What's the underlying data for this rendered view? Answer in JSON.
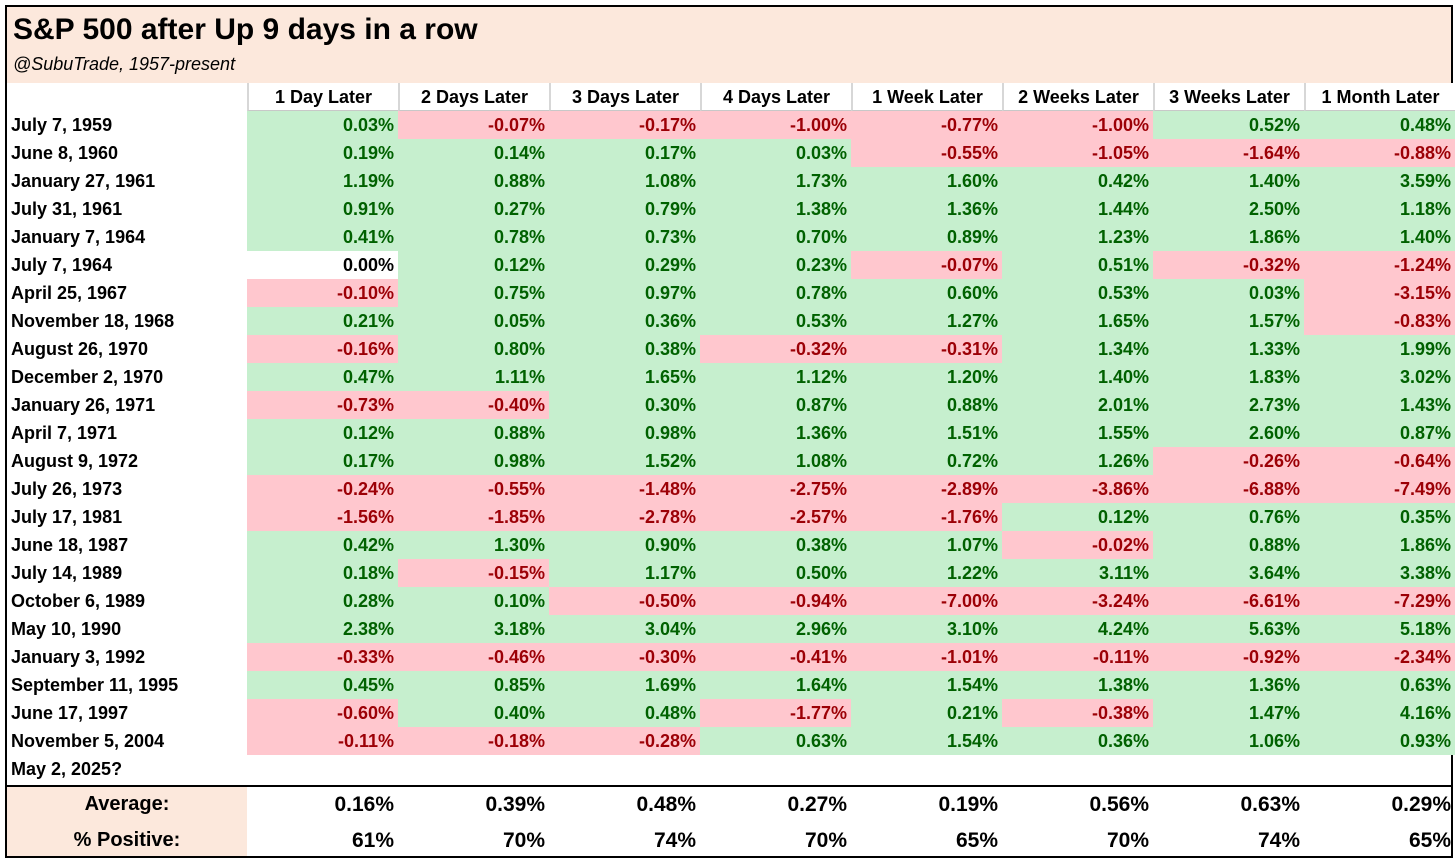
{
  "title": "S&P 500 after Up 9 days in a row",
  "subtitle": "@SubuTrade, 1957-present",
  "chart_data": {
    "type": "table",
    "columns": [
      "1 Day Later",
      "2 Days Later",
      "3 Days Later",
      "4 Days Later",
      "1 Week Later",
      "2 Weeks Later",
      "3 Weeks Later",
      "1 Month Later"
    ],
    "rows": [
      {
        "date": "July 7, 1959",
        "values": [
          "0.03%",
          "-0.07%",
          "-0.17%",
          "-1.00%",
          "-0.77%",
          "-1.00%",
          "0.52%",
          "0.48%"
        ]
      },
      {
        "date": "June 8, 1960",
        "values": [
          "0.19%",
          "0.14%",
          "0.17%",
          "0.03%",
          "-0.55%",
          "-1.05%",
          "-1.64%",
          "-0.88%"
        ]
      },
      {
        "date": "January 27, 1961",
        "values": [
          "1.19%",
          "0.88%",
          "1.08%",
          "1.73%",
          "1.60%",
          "0.42%",
          "1.40%",
          "3.59%"
        ]
      },
      {
        "date": "July 31, 1961",
        "values": [
          "0.91%",
          "0.27%",
          "0.79%",
          "1.38%",
          "1.36%",
          "1.44%",
          "2.50%",
          "1.18%"
        ]
      },
      {
        "date": "January 7, 1964",
        "values": [
          "0.41%",
          "0.78%",
          "0.73%",
          "0.70%",
          "0.89%",
          "1.23%",
          "1.86%",
          "1.40%"
        ]
      },
      {
        "date": "July 7, 1964",
        "values": [
          "0.00%",
          "0.12%",
          "0.29%",
          "0.23%",
          "-0.07%",
          "0.51%",
          "-0.32%",
          "-1.24%"
        ]
      },
      {
        "date": "April 25, 1967",
        "values": [
          "-0.10%",
          "0.75%",
          "0.97%",
          "0.78%",
          "0.60%",
          "0.53%",
          "0.03%",
          "-3.15%"
        ]
      },
      {
        "date": "November 18, 1968",
        "values": [
          "0.21%",
          "0.05%",
          "0.36%",
          "0.53%",
          "1.27%",
          "1.65%",
          "1.57%",
          "-0.83%"
        ]
      },
      {
        "date": "August 26, 1970",
        "values": [
          "-0.16%",
          "0.80%",
          "0.38%",
          "-0.32%",
          "-0.31%",
          "1.34%",
          "1.33%",
          "1.99%"
        ]
      },
      {
        "date": "December 2, 1970",
        "values": [
          "0.47%",
          "1.11%",
          "1.65%",
          "1.12%",
          "1.20%",
          "1.40%",
          "1.83%",
          "3.02%"
        ]
      },
      {
        "date": "January 26, 1971",
        "values": [
          "-0.73%",
          "-0.40%",
          "0.30%",
          "0.87%",
          "0.88%",
          "2.01%",
          "2.73%",
          "1.43%"
        ]
      },
      {
        "date": "April 7, 1971",
        "values": [
          "0.12%",
          "0.88%",
          "0.98%",
          "1.36%",
          "1.51%",
          "1.55%",
          "2.60%",
          "0.87%"
        ]
      },
      {
        "date": "August 9, 1972",
        "values": [
          "0.17%",
          "0.98%",
          "1.52%",
          "1.08%",
          "0.72%",
          "1.26%",
          "-0.26%",
          "-0.64%"
        ]
      },
      {
        "date": "July 26, 1973",
        "values": [
          "-0.24%",
          "-0.55%",
          "-1.48%",
          "-2.75%",
          "-2.89%",
          "-3.86%",
          "-6.88%",
          "-7.49%"
        ]
      },
      {
        "date": "July 17, 1981",
        "values": [
          "-1.56%",
          "-1.85%",
          "-2.78%",
          "-2.57%",
          "-1.76%",
          "0.12%",
          "0.76%",
          "0.35%"
        ]
      },
      {
        "date": "June 18, 1987",
        "values": [
          "0.42%",
          "1.30%",
          "0.90%",
          "0.38%",
          "1.07%",
          "-0.02%",
          "0.88%",
          "1.86%"
        ]
      },
      {
        "date": "July 14, 1989",
        "values": [
          "0.18%",
          "-0.15%",
          "1.17%",
          "0.50%",
          "1.22%",
          "3.11%",
          "3.64%",
          "3.38%"
        ]
      },
      {
        "date": "October 6, 1989",
        "values": [
          "0.28%",
          "0.10%",
          "-0.50%",
          "-0.94%",
          "-7.00%",
          "-3.24%",
          "-6.61%",
          "-7.29%"
        ]
      },
      {
        "date": "May 10, 1990",
        "values": [
          "2.38%",
          "3.18%",
          "3.04%",
          "2.96%",
          "3.10%",
          "4.24%",
          "5.63%",
          "5.18%"
        ]
      },
      {
        "date": "January 3, 1992",
        "values": [
          "-0.33%",
          "-0.46%",
          "-0.30%",
          "-0.41%",
          "-1.01%",
          "-0.11%",
          "-0.92%",
          "-2.34%"
        ]
      },
      {
        "date": "September 11, 1995",
        "values": [
          "0.45%",
          "0.85%",
          "1.69%",
          "1.64%",
          "1.54%",
          "1.38%",
          "1.36%",
          "0.63%"
        ]
      },
      {
        "date": "June 17, 1997",
        "values": [
          "-0.60%",
          "0.40%",
          "0.48%",
          "-1.77%",
          "0.21%",
          "-0.38%",
          "1.47%",
          "4.16%"
        ]
      },
      {
        "date": "November 5, 2004",
        "values": [
          "-0.11%",
          "-0.18%",
          "-0.28%",
          "0.63%",
          "1.54%",
          "0.36%",
          "1.06%",
          "0.93%"
        ]
      },
      {
        "date": "May 2, 2025?",
        "values": []
      }
    ],
    "summary": [
      {
        "label": "Average:",
        "values": [
          "0.16%",
          "0.39%",
          "0.48%",
          "0.27%",
          "0.19%",
          "0.56%",
          "0.63%",
          "0.29%"
        ]
      },
      {
        "label": "% Positive:",
        "values": [
          "61%",
          "70%",
          "74%",
          "70%",
          "65%",
          "70%",
          "74%",
          "65%"
        ]
      }
    ],
    "colors": {
      "positive_bg": "#c6efce",
      "positive_text": "#006100",
      "negative_bg": "#ffc7ce",
      "negative_text": "#9c0006",
      "header_bg": "#fce8dc"
    }
  }
}
